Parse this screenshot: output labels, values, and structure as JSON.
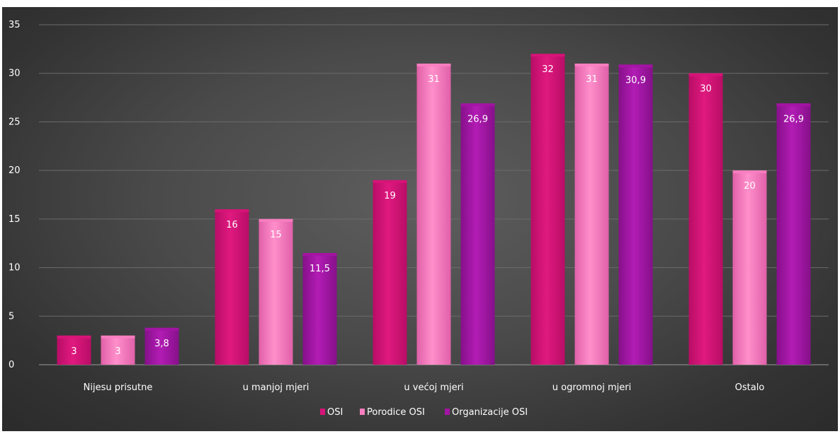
{
  "chart_data": {
    "type": "bar",
    "categories": [
      "Nijesu prisutne",
      "u manjoj mjeri",
      "u većoj mjeri",
      "u ogromnoj mjeri",
      "Ostalo"
    ],
    "series": [
      {
        "name": "OSI",
        "values": [
          3,
          16,
          19,
          32,
          30
        ],
        "labels": [
          "3",
          "16",
          "19",
          "32",
          "30"
        ],
        "color": "#d8147a"
      },
      {
        "name": "Porodice OSI",
        "values": [
          3,
          15,
          31,
          31,
          20
        ],
        "labels": [
          "3",
          "15",
          "31",
          "31",
          "20"
        ],
        "color": "#f77ec0"
      },
      {
        "name": "Organizacije OSI",
        "values": [
          3.8,
          11.5,
          26.9,
          30.9,
          26.9
        ],
        "labels": [
          "3,8",
          "11,5",
          "26,9",
          "30,9",
          "26,9"
        ],
        "color": "#a414a4"
      }
    ],
    "yticks": [
      "0",
      "5",
      "10",
      "15",
      "20",
      "25",
      "30",
      "35"
    ],
    "ylim": [
      0,
      35
    ],
    "grid": true,
    "legend_position": "bottom"
  }
}
